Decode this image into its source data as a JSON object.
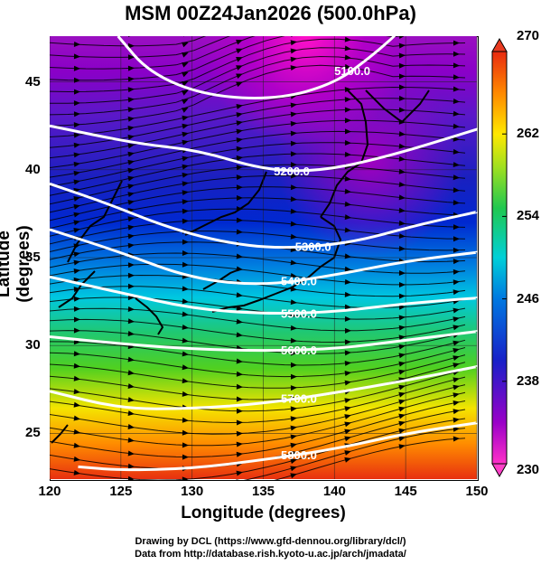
{
  "title": "MSM 00Z24Jan2026 (500.0hPa)",
  "xlabel": "Longitude (degrees)",
  "ylabel": "Latitude  (degrees)",
  "xticks": [
    "120",
    "125",
    "130",
    "135",
    "140",
    "145",
    "150"
  ],
  "yticks": [
    "25",
    "30",
    "35",
    "40",
    "45"
  ],
  "colorbar_ticks": [
    "270",
    "262",
    "254",
    "246",
    "238",
    "230"
  ],
  "credits": {
    "line1": "Drawing by DCL (https://www.gfd-dennou.org/library/dcl/)",
    "line2": "Data from http://database.rish.kyoto-u.ac.jp/arch/jmadata/"
  },
  "chart_data": {
    "type": "heatmap",
    "title": "MSM 00Z24Jan2026 (500.0hPa)",
    "xlabel": "Longitude (degrees)",
    "ylabel": "Latitude  (degrees)",
    "xlim": [
      120,
      150
    ],
    "ylim": [
      22.4,
      47.6
    ],
    "colorbar": {
      "range": [
        230,
        270
      ],
      "ticks": [
        230,
        238,
        246,
        254,
        262,
        270
      ],
      "colors": [
        "#ff00cc",
        "#8a00d4",
        "#0022cc",
        "#00c8e0",
        "#22cc22",
        "#ffee00",
        "#ff8800",
        "#e82000"
      ]
    },
    "contour_labels": [
      "5100.0",
      "5200.0",
      "5300.0",
      "5400.0",
      "5500.0",
      "5600.0",
      "5700.0",
      "5800.0"
    ],
    "contours": [
      {
        "level": 5100,
        "points": [
          [
            124.8,
            47.6
          ],
          [
            127,
            45.5
          ],
          [
            131,
            44.2
          ],
          [
            136,
            44
          ],
          [
            140,
            44.9
          ],
          [
            142.5,
            46.4
          ],
          [
            144.2,
            47.6
          ]
        ]
      },
      {
        "level": 5200,
        "points": [
          [
            120,
            42.5
          ],
          [
            126,
            41.5
          ],
          [
            130.5,
            41.1
          ],
          [
            135,
            40
          ],
          [
            139,
            39.9
          ],
          [
            144,
            40.8
          ],
          [
            150,
            42.3
          ]
        ]
      },
      {
        "level": 5300,
        "points": [
          [
            120,
            39.2
          ],
          [
            124,
            38.1
          ],
          [
            128,
            36.8
          ],
          [
            132,
            35.9
          ],
          [
            136,
            35.5
          ],
          [
            141,
            35.8
          ],
          [
            146,
            36.9
          ],
          [
            150,
            37.6
          ]
        ]
      },
      {
        "level": 5400,
        "points": [
          [
            120,
            36.6
          ],
          [
            125,
            35.3
          ],
          [
            130,
            33.8
          ],
          [
            135,
            33.4
          ],
          [
            140,
            34
          ],
          [
            145,
            34.8
          ],
          [
            150,
            35.3
          ]
        ]
      },
      {
        "level": 5500,
        "points": [
          [
            120,
            33.9
          ],
          [
            125,
            33
          ],
          [
            130,
            32.1
          ],
          [
            135,
            31.8
          ],
          [
            140,
            31.9
          ],
          [
            145,
            32.4
          ],
          [
            150,
            32.7
          ]
        ]
      },
      {
        "level": 5600,
        "points": [
          [
            120,
            30.5
          ],
          [
            125,
            30.1
          ],
          [
            130,
            29.8
          ],
          [
            135,
            29.7
          ],
          [
            140,
            29.8
          ],
          [
            145,
            30.3
          ],
          [
            150,
            30.8
          ]
        ]
      },
      {
        "level": 5700,
        "points": [
          [
            120,
            27.4
          ],
          [
            125,
            26.4
          ],
          [
            130,
            26.4
          ],
          [
            135,
            26.7
          ],
          [
            140,
            27.3
          ],
          [
            145,
            28
          ],
          [
            150,
            28.8
          ]
        ]
      },
      {
        "level": 5800,
        "points": [
          [
            122,
            23.1
          ],
          [
            125,
            22.9
          ],
          [
            130,
            23
          ],
          [
            135,
            23.5
          ],
          [
            140,
            24.1
          ],
          [
            145,
            25
          ],
          [
            150,
            25.6
          ]
        ]
      }
    ],
    "grid": true
  }
}
